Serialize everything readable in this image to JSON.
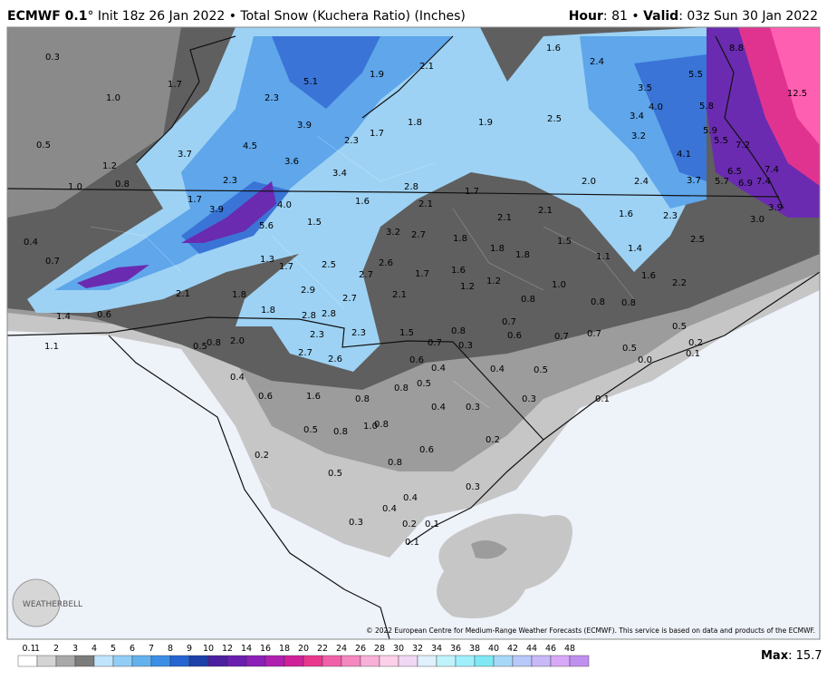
{
  "header": {
    "model": "ECMWF 0.1",
    "title_rest": "° Init 18z 26 Jan 2022 • Total Snow (Kuchera Ratio) (Inches)",
    "hour_key": "Hour",
    "hour_rest": ": 81 • ",
    "valid_key": "Valid",
    "valid_rest": ": 03z Sun 30 Jan 2022"
  },
  "map_labels": [
    "0.3",
    "1.0",
    "1.7",
    "2.3",
    "5.1",
    "1.9",
    "2.1",
    "1.6",
    "2.4",
    "8.8",
    "0.5",
    "3.9",
    "1.8",
    "1.9",
    "2.5",
    "3.5",
    "5.5",
    "4.0",
    "3.4",
    "5.8",
    "12.5",
    "1.7",
    "2.3",
    "3.7",
    "4.5",
    "3.2",
    "5.9",
    "5.5",
    "7.2",
    "1.2",
    "3.6",
    "4.1",
    "1.0",
    "0.8",
    "2.3",
    "3.4",
    "2.0",
    "2.4",
    "3.7",
    "5.7",
    "6.5",
    "6.9",
    "7.4",
    "7.4",
    "2.8",
    "1.6",
    "1.7",
    "2.1",
    "2.1",
    "4.0",
    "1.7",
    "3.9",
    "1.6",
    "2.3",
    "3.9",
    "3.0",
    "5.6",
    "1.5",
    "2.1",
    "3.2",
    "2.7",
    "1.8",
    "1.5",
    "0.4",
    "2.5",
    "1.4",
    "1.8",
    "1.8",
    "0.7",
    "1.3",
    "1.7",
    "2.5",
    "2.6",
    "1.1",
    "1.7",
    "2.7",
    "1.6",
    "1.6",
    "1.2",
    "2.2",
    "1.0",
    "2.1",
    "1.8",
    "2.9",
    "2.7",
    "2.1",
    "1.2",
    "0.8",
    "0.8",
    "0.8",
    "1.8",
    "2.8",
    "2.8",
    "1.4",
    "0.6",
    "0.7",
    "0.5",
    "2.3",
    "2.3",
    "1.5",
    "0.8",
    "0.6",
    "0.7",
    "0.7",
    "1.1",
    "0.5",
    "0.8",
    "2.0",
    "0.7",
    "0.3",
    "0.5",
    "0.2",
    "2.7",
    "2.6",
    "0.6",
    "0.4",
    "0.4",
    "0.5",
    "0.0",
    "0.1",
    "0.4",
    "0.6",
    "1.6",
    "0.8",
    "0.8",
    "0.5",
    "0.3",
    "0.1",
    "0.4",
    "0.3",
    "0.5",
    "0.8",
    "1.0",
    "0.8",
    "0.2",
    "0.6",
    "0.2",
    "0.8",
    "0.5",
    "0.3",
    "0.4",
    "0.4",
    "0.3",
    "0.2",
    "0.1",
    "0.1"
  ],
  "footer": {
    "copyright": "© 2022 European Centre for Medium-Range Weather Forecasts (ECMWF). This service is based on data and products of the ECMWF.",
    "logo": "WEATHERBELL",
    "max_key": "Max",
    "max_rest": ": 15.7"
  },
  "colorbar": {
    "ticks": [
      "0.1",
      "1",
      "2",
      "3",
      "4",
      "5",
      "6",
      "7",
      "8",
      "9",
      "10",
      "12",
      "14",
      "16",
      "18",
      "20",
      "22",
      "24",
      "26",
      "28",
      "30",
      "32",
      "34",
      "36",
      "38",
      "40",
      "42",
      "44",
      "46",
      "48"
    ]
  }
}
